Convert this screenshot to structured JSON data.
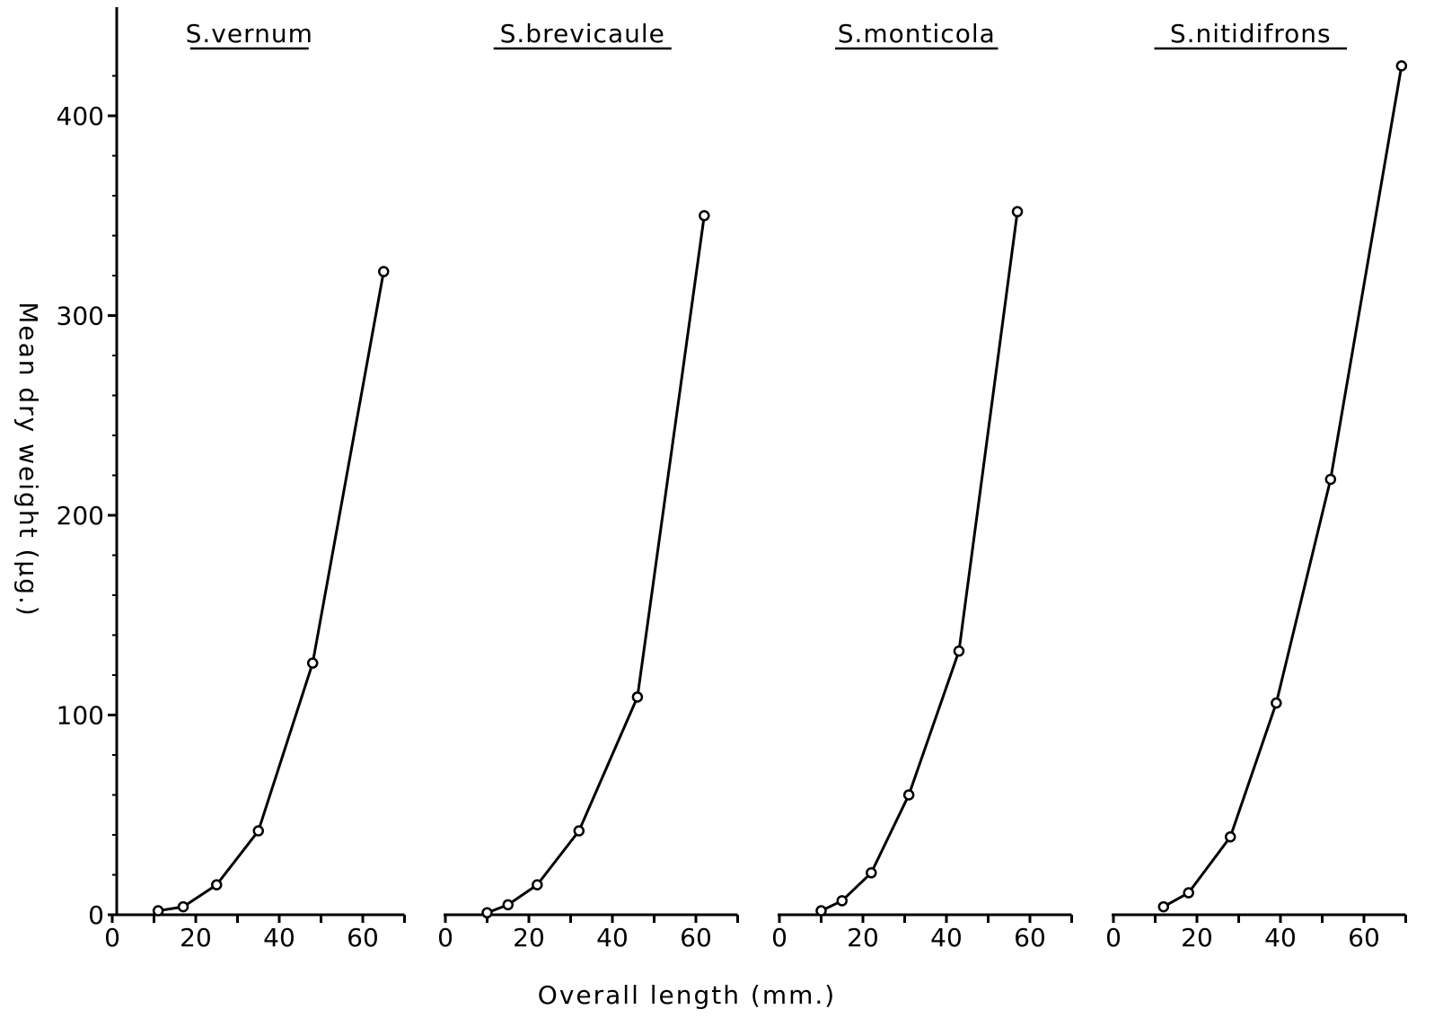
{
  "chart_data": {
    "type": "line",
    "ylabel": "Mean dry weight (µg.)",
    "xlabel": "Overall length (mm.)",
    "ylim": [
      0,
      440
    ],
    "yticks": [
      0,
      100,
      200,
      300,
      400
    ],
    "yticks_minor": [
      20,
      40,
      60,
      80,
      120,
      140,
      160,
      180,
      220,
      240,
      260,
      280,
      320,
      340,
      360,
      380,
      420
    ],
    "xlim": [
      0,
      70
    ],
    "xticks": [
      0,
      20,
      40,
      60
    ],
    "grid": false,
    "panels": [
      {
        "title": "S.vernum",
        "x": [
          11,
          17,
          25,
          35,
          48,
          65
        ],
        "y": [
          2,
          4,
          15,
          42,
          126,
          322
        ]
      },
      {
        "title": "S.brevicaule",
        "x": [
          10,
          15,
          22,
          32,
          46,
          62
        ],
        "y": [
          1,
          5,
          15,
          42,
          109,
          350
        ]
      },
      {
        "title": "S.monticola",
        "x": [
          10,
          15,
          22,
          31,
          43,
          57
        ],
        "y": [
          2,
          7,
          21,
          60,
          132,
          352
        ]
      },
      {
        "title": "S.nitidifrons",
        "x": [
          12,
          18,
          28,
          39,
          52,
          69
        ],
        "y": [
          4,
          11,
          39,
          106,
          218,
          425
        ]
      }
    ]
  }
}
